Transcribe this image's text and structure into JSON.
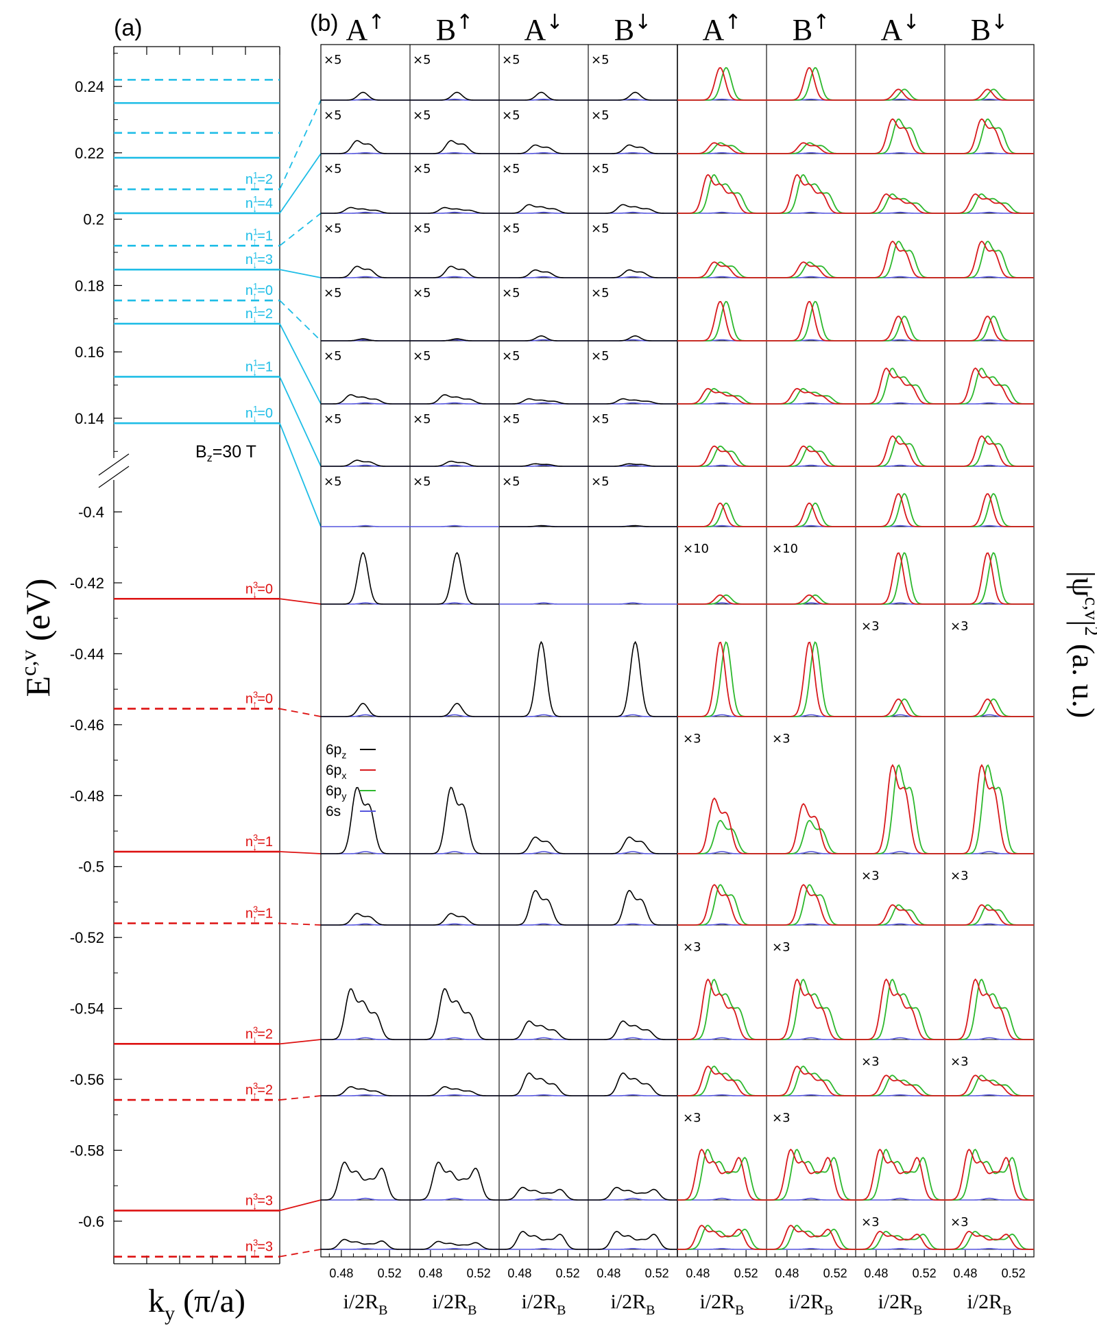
{
  "chart_data": {
    "type": "line",
    "panel_a": {
      "label": "(a)",
      "xlabel": "k",
      "xlabel_sub": "y",
      "xlabel_unit": " (π/a)",
      "ylabel": "E",
      "ylabel_sup": "c,v",
      "ylabel_unit": " (eV)",
      "field_label": "B",
      "field_sub": "z",
      "field_value": "=30 T",
      "upper_axis": {
        "ylim": [
          0.128,
          0.252
        ],
        "ticks": [
          0.14,
          0.16,
          0.18,
          0.2,
          0.22,
          0.24
        ],
        "tick_labels": [
          "0.14",
          "0.16",
          "0.18",
          "0.2",
          "0.22",
          "0.24"
        ]
      },
      "lower_axis": {
        "ylim": [
          -0.612,
          -0.391
        ],
        "ticks": [
          -0.4,
          -0.42,
          -0.44,
          -0.46,
          -0.48,
          -0.5,
          -0.52,
          -0.54,
          -0.56,
          -0.58,
          -0.6
        ],
        "tick_labels": [
          "-0.4",
          "-0.42",
          "-0.44",
          "-0.46",
          "-0.48",
          "-0.5",
          "-0.52",
          "-0.54",
          "-0.56",
          "-0.58",
          "-0.6"
        ]
      },
      "conduction_levels": [
        {
          "energy": 0.1385,
          "spin": "down",
          "label": "n",
          "sup": "1",
          "arrow": "↓",
          "n": "=0"
        },
        {
          "energy": 0.1525,
          "spin": "down",
          "label": "n",
          "sup": "1",
          "arrow": "↓",
          "n": "=1"
        },
        {
          "energy": 0.1685,
          "spin": "down",
          "label": "n",
          "sup": "1",
          "arrow": "↓",
          "n": "=2"
        },
        {
          "energy": 0.1755,
          "spin": "up",
          "label": "n",
          "sup": "1",
          "arrow": "↑",
          "n": "=0"
        },
        {
          "energy": 0.1848,
          "spin": "down",
          "label": "n",
          "sup": "1",
          "arrow": "↓",
          "n": "=3"
        },
        {
          "energy": 0.192,
          "spin": "up",
          "label": "n",
          "sup": "1",
          "arrow": "↑",
          "n": "=1"
        },
        {
          "energy": 0.2018,
          "spin": "down",
          "label": "n",
          "sup": "1",
          "arrow": "↓",
          "n": "=4"
        },
        {
          "energy": 0.209,
          "spin": "up",
          "label": "n",
          "sup": "1",
          "arrow": "↑",
          "n": "=2"
        },
        {
          "energy": 0.2185,
          "spin": "down",
          "label": "",
          "sup": "",
          "arrow": "",
          "n": ""
        },
        {
          "energy": 0.226,
          "spin": "up",
          "label": "",
          "sup": "",
          "arrow": "",
          "n": ""
        },
        {
          "energy": 0.235,
          "spin": "down",
          "label": "",
          "sup": "",
          "arrow": "",
          "n": ""
        },
        {
          "energy": 0.242,
          "spin": "up",
          "label": "",
          "sup": "",
          "arrow": "",
          "n": ""
        }
      ],
      "valence_levels": [
        {
          "energy": -0.4245,
          "spin": "down",
          "label": "n",
          "sup": "3",
          "arrow": "↓",
          "n": "=0"
        },
        {
          "energy": -0.4555,
          "spin": "up",
          "label": "n",
          "sup": "3",
          "arrow": "↑",
          "n": "=0"
        },
        {
          "energy": -0.4958,
          "spin": "down",
          "label": "n",
          "sup": "3",
          "arrow": "↓",
          "n": "=1"
        },
        {
          "energy": -0.516,
          "spin": "up",
          "label": "n",
          "sup": "3",
          "arrow": "↑",
          "n": "=1"
        },
        {
          "energy": -0.55,
          "spin": "down",
          "label": "n",
          "sup": "3",
          "arrow": "↓",
          "n": "=2"
        },
        {
          "energy": -0.5658,
          "spin": "up",
          "label": "n",
          "sup": "3",
          "arrow": "↑",
          "n": "=2"
        },
        {
          "energy": -0.597,
          "spin": "down",
          "label": "n",
          "sup": "3",
          "arrow": "↓",
          "n": "=3"
        },
        {
          "energy": -0.61,
          "spin": "up",
          "label": "n",
          "sup": "3",
          "arrow": "↑",
          "n": "=3"
        }
      ]
    },
    "panel_b": {
      "label": "(b)",
      "ylabel": "|ψ",
      "ylabel_sup": "c,v",
      "ylabel_tail": "|",
      "ylabel_sup2": "2",
      "ylabel_unit": " (a. u.)",
      "xlabel": "i/2R",
      "xlabel_sub": "B",
      "x_ticks": [
        0.48,
        0.52
      ],
      "x_tick_labels": [
        "0.48",
        "0.52"
      ],
      "xlim": [
        0.463,
        0.537
      ],
      "columns": [
        {
          "letter": "A",
          "arrow": "↑",
          "group": "pz_s"
        },
        {
          "letter": "B",
          "arrow": "↑",
          "group": "pz_s"
        },
        {
          "letter": "A",
          "arrow": "↓",
          "group": "pz_s"
        },
        {
          "letter": "B",
          "arrow": "↓",
          "group": "pz_s"
        },
        {
          "letter": "A",
          "arrow": "↑",
          "group": "px_py"
        },
        {
          "letter": "B",
          "arrow": "↑",
          "group": "px_py"
        },
        {
          "letter": "A",
          "arrow": "↓",
          "group": "px_py"
        },
        {
          "letter": "B",
          "arrow": "↓",
          "group": "px_py"
        }
      ],
      "legend": [
        {
          "label": "6p",
          "sub": "z",
          "color": "#000000"
        },
        {
          "label": "6p",
          "sub": "x",
          "color": "#d7191c"
        },
        {
          "label": "6p",
          "sub": "y",
          "color": "#2db82d"
        },
        {
          "label": "6s",
          "sub": "",
          "color": "#5555dd"
        }
      ],
      "rows": [
        {
          "state": "c11",
          "scale_pz": [
            "×5",
            "×5",
            "×5",
            "×5"
          ],
          "scale_pxy": [
            "",
            "",
            "",
            ""
          ],
          "amp_pz": [
            0.18,
            0.18,
            0.18,
            0.18
          ],
          "amp_px": [
            0.75,
            0.75,
            0.25,
            0.25
          ],
          "amp_py": [
            0.75,
            0.75,
            0.25,
            0.25
          ]
        },
        {
          "state": "c10",
          "scale_pz": [
            "×5",
            "×5",
            "×5",
            "×5"
          ],
          "scale_pxy": [
            "",
            "",
            "",
            ""
          ],
          "amp_pz": [
            0.3,
            0.3,
            0.2,
            0.2
          ],
          "amp_px": [
            0.25,
            0.25,
            0.8,
            0.8
          ],
          "amp_py": [
            0.25,
            0.25,
            0.8,
            0.8
          ]
        },
        {
          "state": "c9",
          "scale_pz": [
            "×5",
            "×5",
            "×5",
            "×5"
          ],
          "scale_pxy": [
            "",
            "",
            "",
            ""
          ],
          "amp_pz": [
            0.12,
            0.12,
            0.18,
            0.18
          ],
          "amp_px": [
            0.8,
            0.8,
            0.4,
            0.4
          ],
          "amp_py": [
            0.8,
            0.8,
            0.4,
            0.4
          ]
        },
        {
          "state": "c8",
          "scale_pz": [
            "×5",
            "×5",
            "×5",
            "×5"
          ],
          "scale_pxy": [
            "",
            "",
            "",
            ""
          ],
          "amp_pz": [
            0.22,
            0.22,
            0.15,
            0.15
          ],
          "amp_px": [
            0.3,
            0.3,
            0.7,
            0.7
          ],
          "amp_py": [
            0.3,
            0.3,
            0.7,
            0.7
          ]
        },
        {
          "state": "c7",
          "scale_pz": [
            "×5",
            "×5",
            "×5",
            "×5"
          ],
          "scale_pxy": [
            "",
            "",
            "",
            ""
          ],
          "amp_pz": [
            0.04,
            0.04,
            0.1,
            0.1
          ],
          "amp_px": [
            0.8,
            0.8,
            0.5,
            0.5
          ],
          "amp_py": [
            0.8,
            0.8,
            0.5,
            0.5
          ]
        },
        {
          "state": "c6",
          "scale_pz": [
            "×5",
            "×5",
            "×5",
            "×5"
          ],
          "scale_pxy": [
            "",
            "",
            "",
            ""
          ],
          "amp_pz": [
            0.18,
            0.18,
            0.1,
            0.1
          ],
          "amp_px": [
            0.3,
            0.3,
            0.7,
            0.7
          ],
          "amp_py": [
            0.3,
            0.3,
            0.7,
            0.7
          ]
        },
        {
          "state": "c5",
          "scale_pz": [
            "×5",
            "×5",
            "×5",
            "×5"
          ],
          "scale_pxy": [
            "",
            "",
            "",
            ""
          ],
          "amp_pz": [
            0.12,
            0.1,
            0.05,
            0.05
          ],
          "amp_px": [
            0.4,
            0.4,
            0.6,
            0.6
          ],
          "amp_py": [
            0.4,
            0.4,
            0.6,
            0.6
          ]
        },
        {
          "state": "c4",
          "scale_pz": [
            "×5",
            "×5",
            "×5",
            "×5"
          ],
          "scale_pxy": [
            "",
            "",
            "",
            ""
          ],
          "amp_pz": [
            0.0,
            0.0,
            0.02,
            0.02
          ],
          "amp_px": [
            0.5,
            0.5,
            0.7,
            0.7
          ],
          "amp_py": [
            0.5,
            0.5,
            0.7,
            0.7
          ]
        },
        {
          "state": "v0",
          "scale_pz": [
            "",
            "",
            "",
            ""
          ],
          "scale_pxy": [
            "×10",
            "×10",
            "",
            ""
          ],
          "amp_pz": [
            0.85,
            0.85,
            0.0,
            0.0
          ],
          "amp_px": [
            0.15,
            0.15,
            0.85,
            0.85
          ],
          "amp_py": [
            0.15,
            0.15,
            0.85,
            0.85
          ]
        },
        {
          "state": "v1",
          "scale_pz": [
            "",
            "",
            "",
            ""
          ],
          "scale_pxy": [
            "",
            "",
            "×3",
            "×3"
          ],
          "amp_pz": [
            0.15,
            0.15,
            0.85,
            0.85
          ],
          "amp_px": [
            0.85,
            0.85,
            0.2,
            0.2
          ],
          "amp_py": [
            0.85,
            0.85,
            0.2,
            0.2
          ]
        },
        {
          "state": "v2",
          "scale_pz": [
            "",
            "",
            "",
            ""
          ],
          "scale_pxy": [
            "×3",
            "×3",
            "",
            ""
          ],
          "amp_pz": [
            0.6,
            0.6,
            0.15,
            0.15
          ],
          "amp_px": [
            0.5,
            0.45,
            0.8,
            0.8
          ],
          "amp_py": [
            0.3,
            0.3,
            0.8,
            0.8
          ]
        },
        {
          "state": "v3",
          "scale_pz": [
            "",
            "",
            "",
            ""
          ],
          "scale_pxy": [
            "",
            "",
            "×3",
            "×3"
          ],
          "amp_pz": [
            0.2,
            0.2,
            0.6,
            0.6
          ],
          "amp_px": [
            0.7,
            0.7,
            0.35,
            0.35
          ],
          "amp_py": [
            0.7,
            0.7,
            0.35,
            0.35
          ]
        },
        {
          "state": "v4",
          "scale_pz": [
            "",
            "",
            "",
            ""
          ],
          "scale_pxy": [
            "×3",
            "×3",
            "",
            ""
          ],
          "amp_pz": [
            0.55,
            0.55,
            0.2,
            0.2
          ],
          "amp_px": [
            0.65,
            0.65,
            0.65,
            0.65
          ],
          "amp_py": [
            0.65,
            0.65,
            0.65,
            0.65
          ]
        },
        {
          "state": "v5",
          "scale_pz": [
            "",
            "",
            "",
            ""
          ],
          "scale_pxy": [
            "",
            "",
            "×3",
            "×3"
          ],
          "amp_pz": [
            0.2,
            0.2,
            0.5,
            0.5
          ],
          "amp_px": [
            0.65,
            0.65,
            0.45,
            0.45
          ],
          "amp_py": [
            0.65,
            0.65,
            0.45,
            0.45
          ]
        },
        {
          "state": "v6",
          "scale_pz": [
            "",
            "",
            "",
            ""
          ],
          "scale_pxy": [
            "×3",
            "×3",
            "",
            ""
          ],
          "amp_pz": [
            0.45,
            0.45,
            0.15,
            0.15
          ],
          "amp_px": [
            0.6,
            0.6,
            0.6,
            0.6
          ],
          "amp_py": [
            0.6,
            0.6,
            0.6,
            0.6
          ]
        },
        {
          "state": "v7",
          "scale_pz": [
            "",
            "",
            "",
            ""
          ],
          "scale_pxy": [
            "",
            "",
            "×3",
            "×3"
          ],
          "amp_pz": [
            0.25,
            0.2,
            0.45,
            0.45
          ],
          "amp_px": [
            0.6,
            0.6,
            0.45,
            0.45
          ],
          "amp_py": [
            0.6,
            0.6,
            0.45,
            0.45
          ]
        }
      ]
    }
  }
}
